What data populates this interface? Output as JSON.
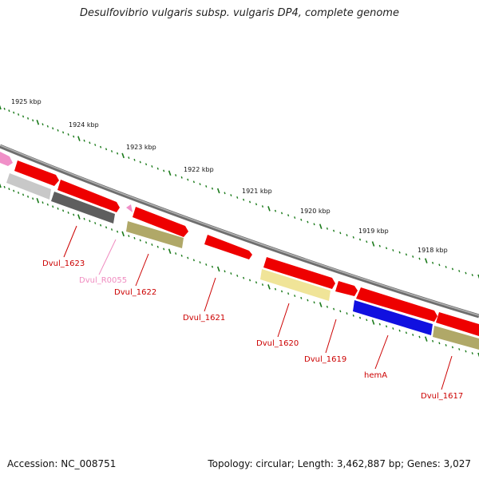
{
  "title": "Desulfovibrio vulgaris subsp. vulgaris DP4, complete genome",
  "accession": "Accession: NC_008751",
  "summary": "Topology: circular; Length: 3,462,887 bp; Genes: 3,027",
  "kbp_labels": [
    "1925 kbp",
    "1924 kbp",
    "1923 kbp",
    "1922 kbp",
    "1921 kbp",
    "1920 kbp",
    "1919 kbp",
    "1918 kbp"
  ],
  "gene_labels": [
    {
      "name": "Dvul_1623",
      "color": "#cc0000"
    },
    {
      "name": "Dvul_R0055",
      "color": "#f08cc0"
    },
    {
      "name": "Dvul_1622",
      "color": "#cc0000"
    },
    {
      "name": "Dvul_1621",
      "color": "#cc0000"
    },
    {
      "name": "Dvul_1620",
      "color": "#cc0000"
    },
    {
      "name": "Dvul_1619",
      "color": "#cc0000"
    },
    {
      "name": "hemA",
      "color": "#cc0000"
    },
    {
      "name": "Dvul_1617",
      "color": "#cc0000"
    }
  ],
  "colors": {
    "backbone": "#7a7a7a",
    "ruler": "#1a7a1a",
    "gene_red": "#ee0000",
    "gene_red_dark": "#aa0000",
    "gene_pink": "#f090c8",
    "grey_light": "#c8c8c8",
    "grey_dark": "#606060",
    "olive": "#b0a868",
    "yellow": "#f0e498",
    "blue": "#1010e0"
  }
}
